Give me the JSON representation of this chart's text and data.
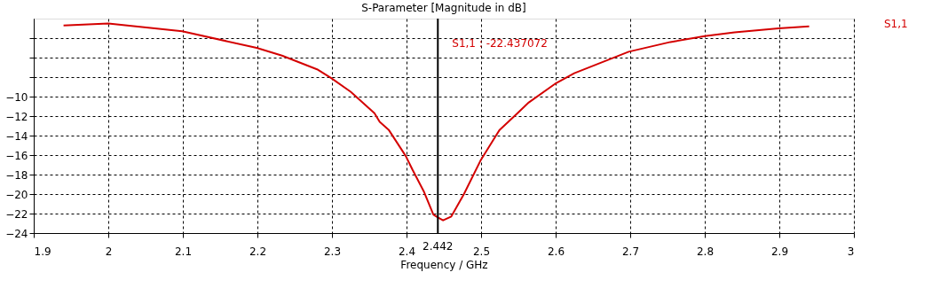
{
  "chart_data": {
    "type": "line",
    "title": "S-Parameter [Magnitude in dB]",
    "xlabel": "Frequency / GHz",
    "xlim": [
      1.9,
      3
    ],
    "xticks": [
      1.9,
      2,
      2.1,
      2.2,
      2.3,
      2.4,
      2.5,
      2.6,
      2.7,
      2.8,
      2.9,
      3
    ],
    "ylim": [
      -24,
      -2
    ],
    "yticks": [
      {
        "value": -4,
        "label": null
      },
      {
        "value": -6,
        "label": null
      },
      {
        "value": -8,
        "label": null
      },
      -10,
      -12,
      -14,
      -16,
      -18,
      -20,
      -22,
      -24
    ],
    "grid": true,
    "legend": "right",
    "line_style": "solid",
    "marker": "none",
    "series": [
      {
        "name": "S1,1",
        "color": "#d40000",
        "x": [
          1.94,
          2.0,
          2.099,
          2.199,
          2.233,
          2.28,
          2.299,
          2.325,
          2.357,
          2.364,
          2.376,
          2.399,
          2.408,
          2.423,
          2.436,
          2.442,
          2.449,
          2.46,
          2.477,
          2.499,
          2.52,
          2.525,
          2.546,
          2.564,
          2.599,
          2.625,
          2.698,
          2.754,
          2.8,
          2.84,
          2.899,
          2.94
        ],
        "values": [
          -2.7,
          -2.5,
          -3.3,
          -5.0,
          -5.8,
          -7.2,
          -8.1,
          -9.5,
          -11.7,
          -12.6,
          -13.4,
          -16.1,
          -17.5,
          -19.7,
          -22.1,
          -22.4,
          -22.7,
          -22.3,
          -20.0,
          -16.6,
          -14.0,
          -13.4,
          -11.9,
          -10.6,
          -8.7,
          -7.6,
          -5.4,
          -4.4,
          -3.8,
          -3.4,
          -3.0,
          -2.8
        ]
      }
    ],
    "ref_lines": [
      {
        "axis": "x",
        "value": 2.442,
        "label": "2.442",
        "color": "#000000"
      }
    ],
    "annotations": [
      "S1,1 : -22.437072"
    ]
  }
}
